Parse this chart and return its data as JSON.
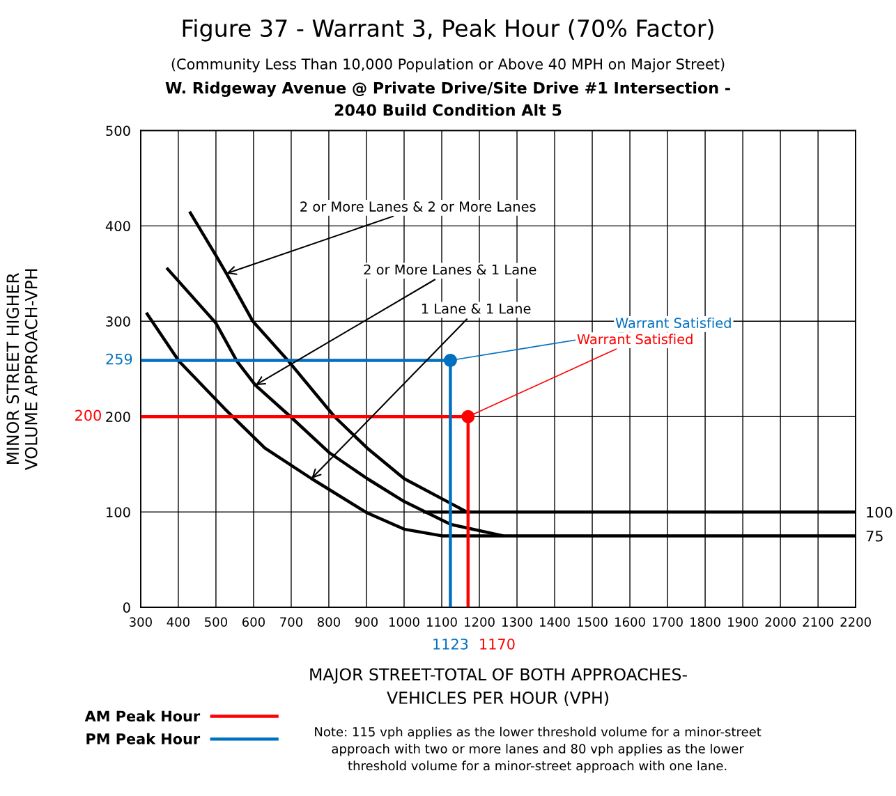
{
  "chart_data": {
    "type": "line",
    "title": "Figure 37 - Warrant 3, Peak Hour (70% Factor)",
    "subtitle": "(Community Less Than 10,000 Population or Above 40 MPH on Major Street)",
    "xlabel": "MAJOR STREET-TOTAL OF BOTH APPROACHES-\nVEHICLES PER HOUR (VPH)",
    "ylabel": "MINOR STREET HIGHER\nVOLUME APPROACH-VPH",
    "xlim": [
      300,
      2200
    ],
    "xticks": [
      300,
      400,
      500,
      600,
      700,
      800,
      900,
      1000,
      1100,
      1200,
      1300,
      1400,
      1500,
      1600,
      1700,
      1800,
      1900,
      2000,
      2100,
      2200
    ],
    "ylim": [
      0,
      500
    ],
    "yticks": [
      0,
      100,
      200,
      300,
      400,
      500
    ],
    "y2lim": [
      0,
      500
    ],
    "y2ticks": [
      75,
      100
    ],
    "grid": true,
    "legend": "bottom left",
    "marker": "none",
    "line_style": "solid",
    "series": [
      {
        "color": "#000000",
        "x": [
          430,
          500,
          528,
          598,
          691,
          815,
          902,
          1000,
          1124,
          1167
        ],
        "values": [
          415,
          369,
          350,
          300,
          259,
          200,
          167,
          135,
          109,
          100
        ]
      },
      {
        "color": "#000000",
        "x": [
          369,
          500,
          556,
          605,
          698,
          802,
          902,
          1000,
          1124,
          1263
        ],
        "values": [
          356,
          298,
          258,
          233,
          200,
          162,
          135,
          111,
          87,
          75
        ]
      },
      {
        "color": "#000000",
        "x": [
          315,
          402,
          524,
          630,
          754,
          902,
          1000,
          1100,
          2200
        ],
        "values": [
          309,
          258,
          208,
          167,
          135,
          99,
          82,
          75,
          75
        ]
      },
      {
        "color": "#000000",
        "x": [
          1050,
          2200
        ],
        "values": [
          100,
          100
        ]
      },
      {
        "name": "AM Peak Hour",
        "color": "#ff0000",
        "x": [
          300,
          1170,
          1170
        ],
        "values": [
          200,
          200,
          0
        ]
      },
      {
        "name": "PM Peak Hour",
        "color": "#0070c0",
        "x": [
          300,
          1123,
          1123
        ],
        "values": [
          259,
          259,
          0
        ]
      },
      {
        "type": "scatter",
        "marker": "circle",
        "color": "#ff0000",
        "x": [
          1170
        ],
        "values": [
          200
        ]
      },
      {
        "type": "scatter",
        "marker": "circle",
        "color": "#0070c0",
        "x": [
          1123
        ],
        "values": [
          259
        ]
      }
    ],
    "annotations": [
      "W. Ridgeway Avenue @ Private Drive/Site Drive #1 Intersection -\n2040 Build Condition Alt 5",
      "Note: 115 vph applies as the lower threshold volume for a minor-street\napproach with two or more lanes and 80 vph applies as the lower\nthreshold volume for a minor-street approach with one lane.",
      {
        "text": "2 or More Lanes & 2 or More Lanes",
        "x": 528,
        "y": 350
      },
      {
        "text": "2 or More Lanes & 1 Lane",
        "x": 605,
        "y": 233
      },
      {
        "text": "1 Lane & 1 Lane",
        "x": 754,
        "y": 135
      },
      {
        "text": "Warrant Satisfied",
        "x": 1123,
        "y": 259
      },
      {
        "text": "Warrant Satisfied",
        "x": 1170,
        "y": 200
      },
      "259",
      "200",
      "1123",
      "1170"
    ]
  }
}
